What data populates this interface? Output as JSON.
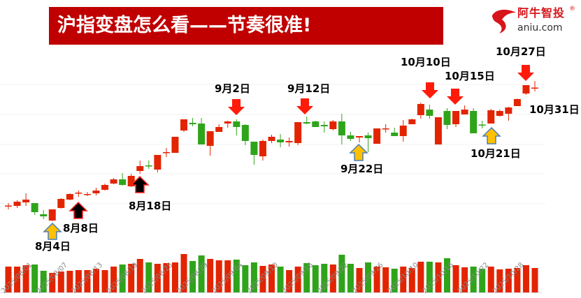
{
  "title": "沪指变盘怎么看——节奏很准!",
  "logo": {
    "cn": "阿牛智投",
    "reg": "®",
    "en": "aniu.com"
  },
  "colors": {
    "up": "#e32400",
    "down": "#2fa41b",
    "banner": "#c00000",
    "arrow_top": "#ff1a0a",
    "arrow_bottom_yellow": "#ffc000",
    "arrow_bottom_black": "#000000"
  },
  "annotations": [
    {
      "label": "8月4日",
      "arrow": "up-yellow"
    },
    {
      "label": "8月8日",
      "arrow": "up-black"
    },
    {
      "label": "8月18日",
      "arrow": "up-black"
    },
    {
      "label": "9月2日",
      "arrow": "down-red"
    },
    {
      "label": "9月12日",
      "arrow": "down-red"
    },
    {
      "label": "9月22日",
      "arrow": "up-yellow"
    },
    {
      "label": "10月10日",
      "arrow": "down-red"
    },
    {
      "label": "10月15日",
      "arrow": "down-red"
    },
    {
      "label": "10月21日",
      "arrow": "up-yellow"
    },
    {
      "label": "10月27日",
      "arrow": "down-red"
    },
    {
      "label": "10月31日",
      "arrow": "none"
    }
  ],
  "chart_data": {
    "type": "candlestick",
    "title": "",
    "xlabel": "",
    "ylabel": "",
    "grid": true,
    "price_ylim": [
      0,
      230
    ],
    "volume_ylim": [
      0,
      60
    ],
    "tick_labels": [
      "2025/08/01",
      "2025/08/07",
      "2025/08/13",
      "2025/08/19",
      "2025/08/25",
      "2025/08/29",
      "2025/09/04",
      "2025/09/10",
      "2025/09/16",
      "2025/09/22",
      "2025/09/26",
      "2025/10/10",
      "2025/10/16",
      "2025/10/22",
      "2025/10/28"
    ],
    "dates": [
      "07/31",
      "08/01",
      "08/04",
      "08/05",
      "08/06",
      "08/07",
      "08/08",
      "08/11",
      "08/12",
      "08/13",
      "08/14",
      "08/15",
      "08/18",
      "08/19",
      "08/20",
      "08/21",
      "08/22",
      "08/25",
      "08/26",
      "08/27",
      "08/28",
      "08/29",
      "09/01",
      "09/02",
      "09/03",
      "09/04",
      "09/05",
      "09/08",
      "09/09",
      "09/10",
      "09/11",
      "09/12",
      "09/15",
      "09/16",
      "09/17",
      "09/18",
      "09/19",
      "09/22",
      "09/23",
      "09/24",
      "09/25",
      "09/26",
      "09/29",
      "09/30",
      "10/09",
      "10/10",
      "10/13",
      "10/14",
      "10/15",
      "10/16",
      "10/17",
      "10/20",
      "10/21",
      "10/22",
      "10/23",
      "10/24",
      "10/27",
      "10/28",
      "10/29",
      "10/30",
      "10/31"
    ],
    "ohlc": [
      [
        35,
        39,
        30,
        35.5
      ],
      [
        35,
        43,
        32,
        41
      ],
      [
        40,
        53,
        35,
        44
      ],
      [
        39,
        39,
        22,
        26
      ],
      [
        23,
        29,
        16,
        20
      ],
      [
        14,
        30,
        13,
        30
      ],
      [
        32,
        46,
        31,
        45
      ],
      [
        44,
        53,
        43,
        52
      ],
      [
        53,
        57,
        48,
        54
      ],
      [
        51.5,
        55,
        49,
        52
      ],
      [
        53,
        61,
        50,
        57
      ],
      [
        58,
        67,
        57,
        65
      ],
      [
        67,
        75,
        66,
        73
      ],
      [
        73,
        82,
        64,
        65
      ],
      [
        63,
        81,
        62,
        78
      ],
      [
        85,
        100,
        81,
        92
      ],
      [
        93,
        100,
        88,
        92
      ],
      [
        87,
        108,
        83,
        108
      ],
      [
        111,
        118,
        105,
        112
      ],
      [
        111,
        134,
        111,
        134
      ],
      [
        143,
        159,
        141,
        159
      ],
      [
        154,
        161,
        149,
        152
      ],
      [
        153,
        161,
        123,
        123
      ],
      [
        121,
        142,
        107,
        142
      ],
      [
        141,
        152,
        141,
        148
      ],
      [
        153,
        157,
        147,
        156
      ],
      [
        156,
        159,
        136,
        148
      ],
      [
        151,
        152,
        122,
        128
      ],
      [
        127,
        127,
        94,
        108
      ],
      [
        106,
        130,
        100,
        128
      ],
      [
        128,
        137,
        125,
        134
      ],
      [
        130,
        138,
        119,
        126
      ],
      [
        126,
        133,
        120,
        128
      ],
      [
        125,
        155,
        122,
        155
      ],
      [
        155,
        163,
        152,
        153
      ],
      [
        156,
        157,
        148,
        148
      ],
      [
        151,
        156,
        140,
        149
      ],
      [
        145,
        158,
        143,
        156
      ],
      [
        156,
        167,
        123,
        136
      ],
      [
        136,
        141,
        128,
        131
      ],
      [
        133,
        135,
        126,
        135
      ],
      [
        136,
        140,
        112,
        132
      ],
      [
        124,
        146,
        124,
        146
      ],
      [
        145.5,
        152,
        140,
        146
      ],
      [
        140,
        147,
        135,
        135
      ],
      [
        135,
        158,
        127,
        150
      ],
      [
        152,
        160,
        152,
        159
      ],
      [
        165,
        183,
        160,
        181
      ],
      [
        173,
        180,
        160,
        164
      ],
      [
        123,
        162,
        123,
        162
      ],
      [
        171,
        175,
        145,
        151
      ],
      [
        152,
        171,
        148,
        171
      ],
      [
        166,
        179,
        166,
        173
      ],
      [
        171,
        175,
        139,
        139
      ],
      [
        151.5,
        157,
        146,
        151
      ],
      [
        153,
        174,
        153,
        172
      ],
      [
        164,
        173,
        163,
        171
      ],
      [
        167,
        177,
        157,
        176
      ],
      [
        178,
        189,
        178,
        188
      ],
      [
        196,
        208,
        194,
        208
      ],
      [
        204,
        214,
        199,
        204.5
      ]
    ],
    "volume": [
      37,
      37,
      39,
      40,
      31,
      28,
      30,
      31,
      32,
      32,
      34,
      32,
      37,
      40,
      41,
      48,
      43,
      41,
      42,
      43,
      55,
      45,
      53,
      48,
      46,
      46,
      47,
      39,
      43,
      38,
      40,
      37,
      32,
      37,
      42,
      39,
      41,
      40,
      54,
      41,
      35,
      43,
      37,
      36,
      34,
      37,
      35,
      44,
      44,
      43,
      49,
      39,
      36,
      37,
      34,
      37,
      33,
      34,
      35,
      39,
      35
    ]
  }
}
